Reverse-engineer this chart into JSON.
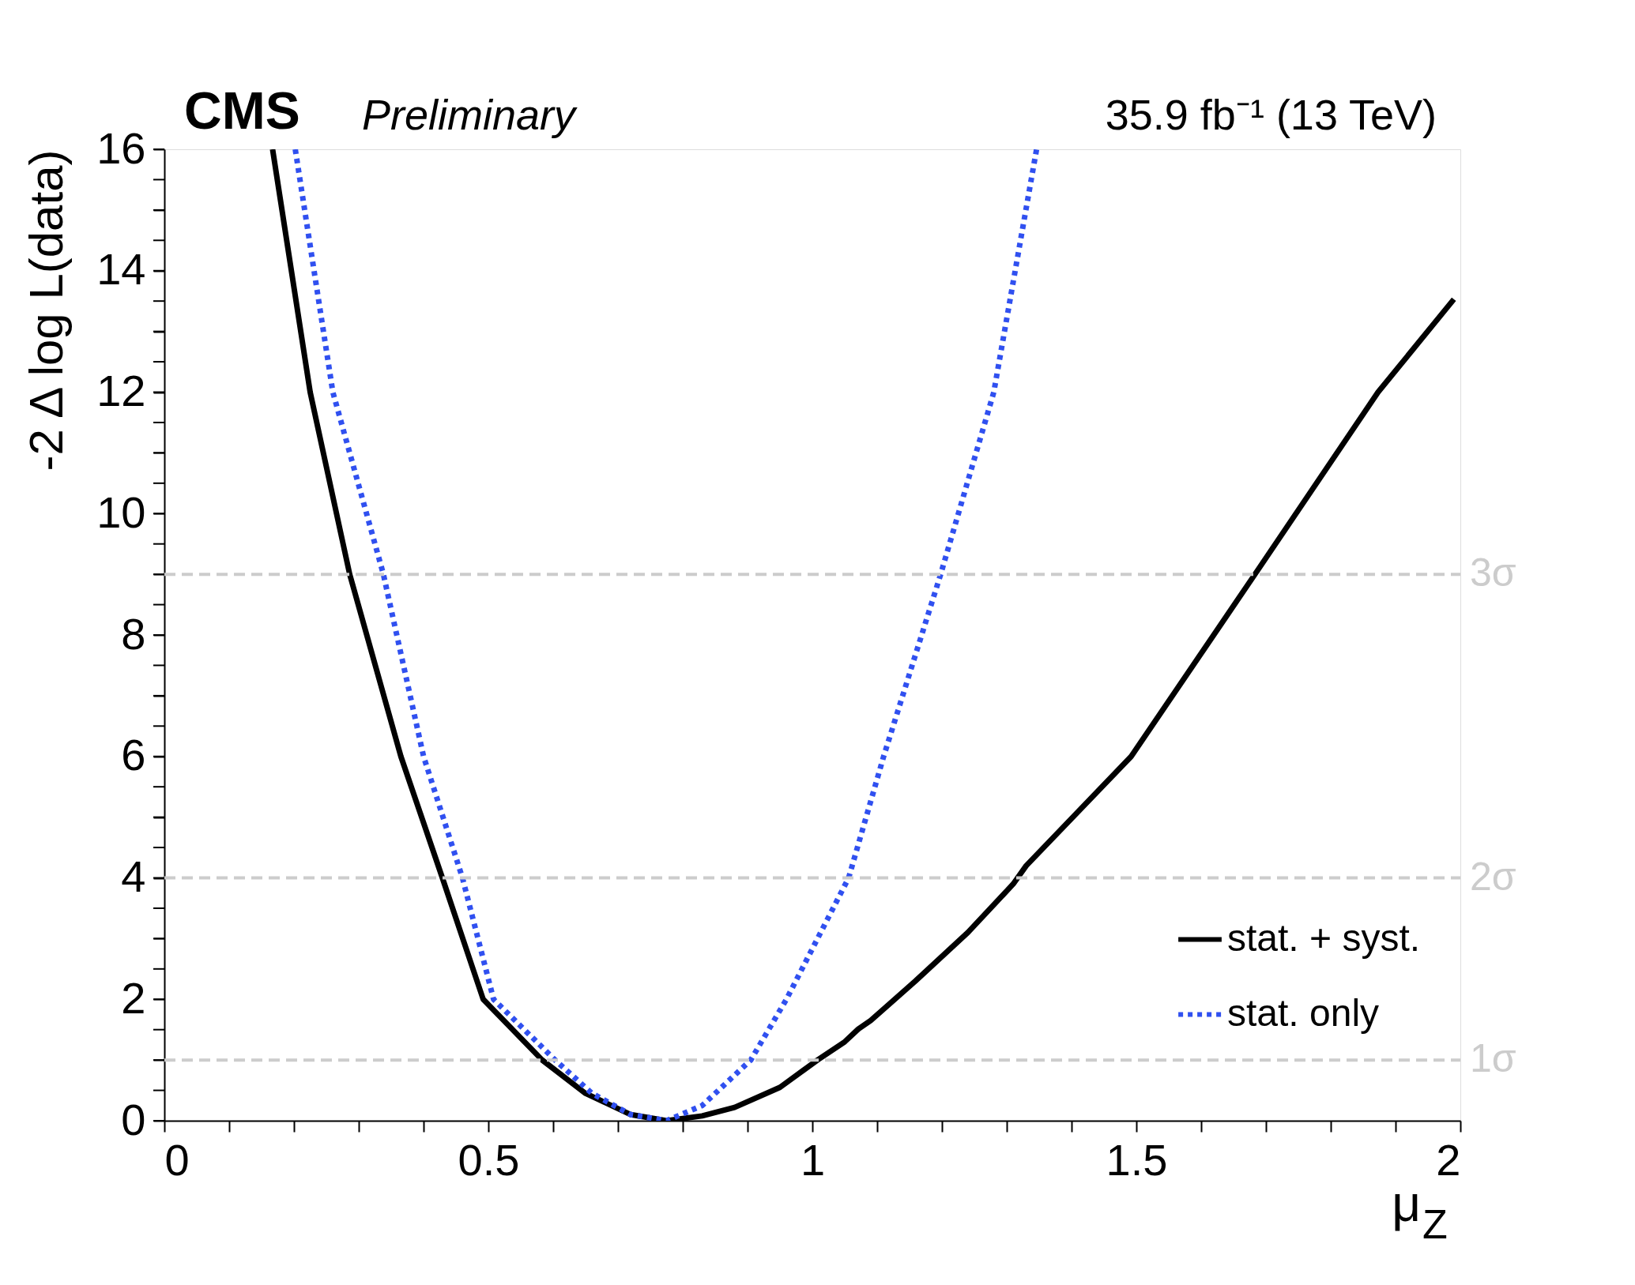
{
  "chart_data": {
    "type": "line",
    "title": "CMS",
    "subtitle": "Preliminary",
    "annotations": [
      "35.9 fb⁻¹ (13 TeV)"
    ],
    "xlabel": "μ$_{Z}$",
    "ylabel": "-2 Δ log L(data)",
    "xlim": [
      0,
      2
    ],
    "ylim": [
      0,
      16
    ],
    "xticks": [
      0,
      {
        "value": 0.1,
        "label": null
      },
      {
        "value": 0.2,
        "label": null
      },
      {
        "value": 0.3,
        "label": null
      },
      {
        "value": 0.4,
        "label": null
      },
      0.5,
      {
        "value": 0.6,
        "label": null
      },
      {
        "value": 0.7,
        "label": null
      },
      {
        "value": 0.8,
        "label": null
      },
      {
        "value": 0.9,
        "label": null
      },
      1,
      {
        "value": 1.1,
        "label": null
      },
      {
        "value": 1.2,
        "label": null
      },
      {
        "value": 1.3,
        "label": null
      },
      {
        "value": 1.4,
        "label": null
      },
      1.5,
      {
        "value": 1.6,
        "label": null
      },
      {
        "value": 1.7,
        "label": null
      },
      {
        "value": 1.8,
        "label": null
      },
      {
        "value": 1.9,
        "label": null
      },
      2
    ],
    "yticks": [
      0,
      {
        "value": 0.5,
        "label": null
      },
      {
        "value": 1,
        "label": null
      },
      {
        "value": 1.5,
        "label": null
      },
      2,
      {
        "value": 2.5,
        "label": null
      },
      {
        "value": 3,
        "label": null
      },
      {
        "value": 3.5,
        "label": null
      },
      4,
      {
        "value": 4.5,
        "label": null
      },
      {
        "value": 5,
        "label": null
      },
      {
        "value": 5.5,
        "label": null
      },
      6,
      {
        "value": 6.5,
        "label": null
      },
      {
        "value": 7,
        "label": null
      },
      {
        "value": 7.5,
        "label": null
      },
      8,
      {
        "value": 8.5,
        "label": null
      },
      {
        "value": 9,
        "label": null
      },
      {
        "value": 9.5,
        "label": null
      },
      10,
      {
        "value": 10.5,
        "label": null
      },
      {
        "value": 11,
        "label": null
      },
      {
        "value": 11.5,
        "label": null
      },
      12,
      {
        "value": 12.5,
        "label": null
      },
      {
        "value": 13,
        "label": null
      },
      {
        "value": 13.5,
        "label": null
      },
      14,
      {
        "value": 14.5,
        "label": null
      },
      {
        "value": 15,
        "label": null
      },
      {
        "value": 15.5,
        "label": null
      },
      16
    ],
    "grid": false,
    "legend": "bottom right",
    "marker": "none",
    "ref_lines": [
      {
        "axis": "y",
        "value": 1,
        "label": "1σ",
        "color": "#cccccc",
        "line_style": "dashed"
      },
      {
        "axis": "y",
        "value": 4,
        "label": "2σ",
        "color": "#cccccc",
        "line_style": "dashed"
      },
      {
        "axis": "y",
        "value": 9,
        "label": "3σ",
        "color": "#cccccc",
        "line_style": "dashed"
      }
    ],
    "series": [
      {
        "name": "stat. + syst.",
        "color": "#000000",
        "line_style": "solid",
        "x": [
          0.167,
          0.225,
          0.286,
          0.365,
          0.429,
          0.492,
          0.583,
          0.65,
          0.72,
          0.775,
          0.83,
          0.88,
          0.95,
          1.008,
          1.05,
          1.071,
          1.09,
          1.159,
          1.24,
          1.31,
          1.33,
          1.492,
          1.683,
          1.873,
          1.99
        ],
        "values": [
          16,
          12,
          9,
          6,
          4,
          2,
          1,
          0.45,
          0.1,
          0,
          0.08,
          0.22,
          0.55,
          1,
          1.3,
          1.51,
          1.65,
          2.3,
          3.1,
          3.9,
          4.2,
          6,
          9,
          12,
          13.53
        ]
      },
      {
        "name": "stat. only",
        "color": "#3050f0",
        "line_style": "dotted",
        "x": [
          0.202,
          0.26,
          0.338,
          0.4,
          0.46,
          0.508,
          0.603,
          0.66,
          0.72,
          0.775,
          0.83,
          0.905,
          0.96,
          1.056,
          1.11,
          1.198,
          1.28,
          1.346
        ],
        "values": [
          16,
          12,
          9,
          6,
          4,
          2,
          1,
          0.45,
          0.1,
          0,
          0.25,
          1,
          2,
          4,
          6,
          9,
          12,
          16
        ]
      }
    ]
  }
}
